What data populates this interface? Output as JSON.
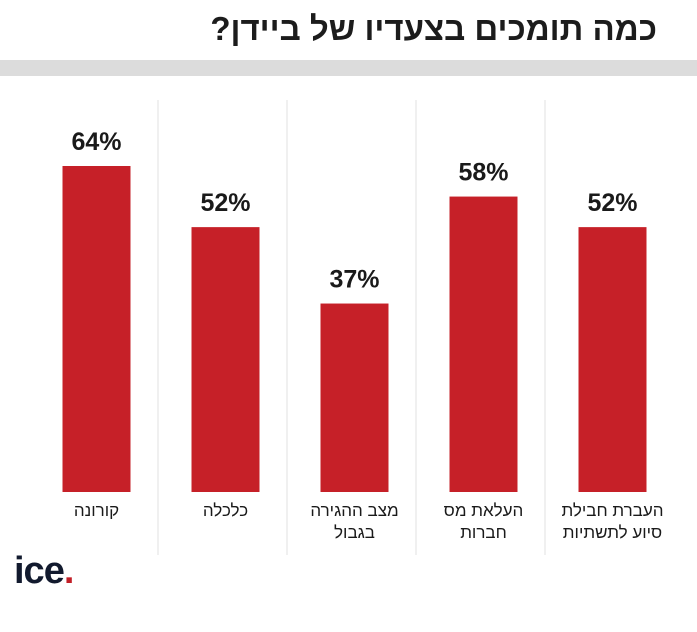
{
  "chart_data": {
    "type": "bar",
    "title": "כמה תומכים בצעדיו של ביידן?",
    "categories": [
      [
        "קורונה"
      ],
      [
        "כלכלה"
      ],
      [
        "מצב ההגירה",
        "בגבול"
      ],
      [
        "העלאת מס",
        "חברות"
      ],
      [
        "העברת חבילת",
        "סיוע לתשתיות"
      ]
    ],
    "values": [
      64,
      52,
      37,
      58,
      52
    ],
    "value_labels": [
      "64%",
      "52%",
      "37%",
      "58%",
      "52%"
    ],
    "unit": "%",
    "ylim": [
      0,
      100
    ],
    "xlabel": "",
    "ylabel": "",
    "grid": false,
    "bar_color": "#c62028"
  },
  "logo": {
    "text": "ice",
    "dot": ".",
    "accent_color": "#c21f27"
  }
}
